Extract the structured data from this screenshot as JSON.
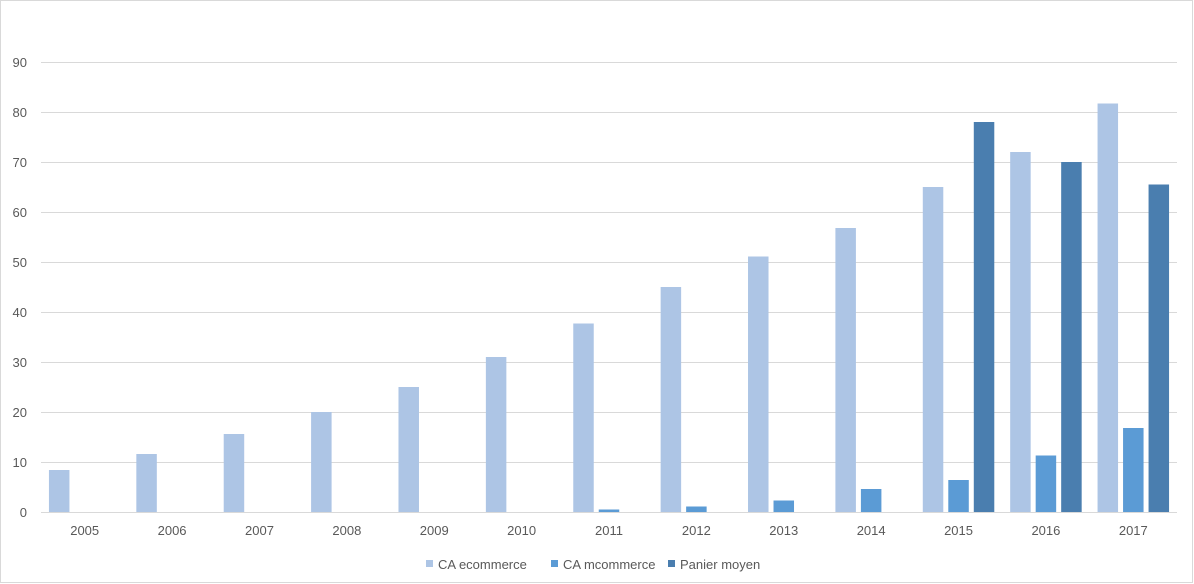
{
  "chart_data": {
    "type": "bar",
    "title": "",
    "xlabel": "",
    "ylabel": "",
    "ylim": [
      0,
      90
    ],
    "yticks": [
      0,
      10,
      20,
      30,
      40,
      50,
      60,
      70,
      80,
      90
    ],
    "grid": true,
    "legend_position": "bottom",
    "categories": [
      "2005",
      "2006",
      "2007",
      "2008",
      "2009",
      "2010",
      "2011",
      "2012",
      "2013",
      "2014",
      "2015",
      "2016",
      "2017"
    ],
    "series": [
      {
        "name": "CA ecommerce",
        "color": "#adc5e5",
        "values": [
          8.4,
          11.6,
          15.6,
          20,
          25,
          31,
          37.7,
          45,
          51.1,
          56.8,
          65,
          72,
          81.7
        ]
      },
      {
        "name": "CA mcommerce",
        "color": "#5b9bd5",
        "values": [
          null,
          null,
          null,
          null,
          null,
          null,
          0.5,
          1.1,
          2.3,
          4.6,
          6.4,
          11.3,
          16.8
        ]
      },
      {
        "name": "Panier moyen",
        "color": "#4a7eaf",
        "values": [
          null,
          null,
          null,
          null,
          null,
          null,
          null,
          null,
          null,
          null,
          78,
          70,
          65.5
        ]
      }
    ]
  }
}
